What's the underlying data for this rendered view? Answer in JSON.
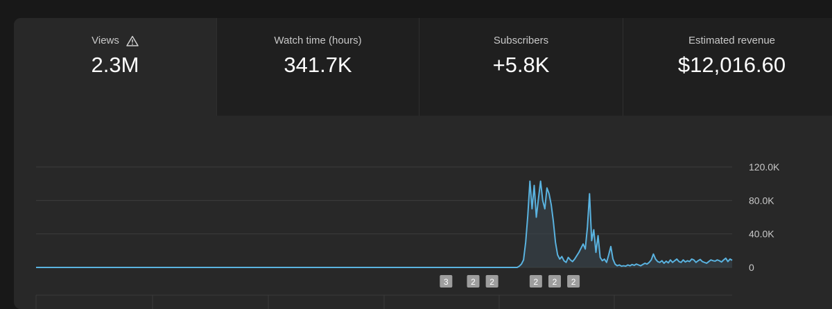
{
  "metrics": [
    {
      "label": "Views",
      "value": "2.3M",
      "selected": true,
      "warning_icon": "warning-triangle-icon"
    },
    {
      "label": "Watch time (hours)",
      "value": "341.7K",
      "selected": false
    },
    {
      "label": "Subscribers",
      "value": "+5.8K",
      "selected": false
    },
    {
      "label": "Estimated revenue",
      "value": "$12,016.60",
      "selected": false
    }
  ],
  "colors": {
    "line": "#5ab3e0",
    "background": "#282828",
    "tab_background": "#1f1f1f",
    "grid": "#3c3c3c",
    "marker": "#9e9e9e"
  },
  "chart_data": {
    "type": "area",
    "ylim": [
      0,
      120000
    ],
    "y_ticks": [
      "120.0K",
      "80.0K",
      "40.0K",
      "0"
    ],
    "y_tick_values": [
      120000,
      80000,
      40000,
      0
    ],
    "grid": true,
    "y_axis_position": "right",
    "series": [
      {
        "values": [
          0,
          0,
          0,
          0,
          0,
          0,
          0,
          0,
          0,
          0,
          0,
          0,
          0,
          0,
          0,
          0,
          0,
          0,
          0,
          0,
          0,
          0,
          0,
          0,
          0,
          0,
          0,
          0,
          0,
          0,
          0,
          0,
          0,
          0,
          0,
          0,
          0,
          0,
          0,
          0,
          0,
          0,
          0,
          0,
          0,
          0,
          0,
          0,
          0,
          0,
          0,
          0,
          0,
          0,
          0,
          0,
          0,
          0,
          0,
          0,
          0,
          0,
          0,
          0,
          0,
          0,
          0,
          0,
          0,
          0,
          0,
          0,
          0,
          0,
          0,
          0,
          0,
          0,
          0,
          0,
          0,
          0,
          0,
          0,
          0,
          0,
          0,
          0,
          0,
          0,
          0,
          0,
          0,
          0,
          0,
          0,
          0,
          0,
          0,
          0,
          0,
          0,
          0,
          0,
          0,
          0,
          0,
          0,
          0,
          0,
          0,
          0,
          0,
          0,
          0,
          0,
          0,
          0,
          0,
          0,
          0,
          0,
          0,
          0,
          0,
          0,
          0,
          0,
          0,
          0,
          0,
          0,
          0,
          0,
          0,
          0,
          0,
          0,
          0,
          0,
          0,
          0,
          0,
          0,
          0,
          0,
          0,
          0,
          0,
          0,
          0,
          0,
          0,
          0,
          0,
          0,
          0,
          0,
          0,
          0,
          0,
          0,
          0,
          0,
          0,
          0,
          0,
          0,
          0,
          0,
          0,
          0,
          0,
          0,
          0,
          0,
          0,
          0,
          0,
          0,
          0,
          0,
          0,
          0,
          0,
          0,
          0,
          0,
          0,
          0,
          0,
          0,
          0,
          0,
          0,
          0,
          0,
          0,
          0,
          0,
          0,
          0,
          0,
          0,
          0,
          0,
          0,
          0,
          0,
          0,
          0,
          0,
          0,
          0,
          0,
          0,
          0,
          0,
          0,
          0,
          0,
          0,
          0,
          0,
          0,
          0,
          0,
          1500,
          4000,
          9000,
          30000,
          62000,
          103000,
          70000,
          98000,
          60000,
          82000,
          103000,
          80000,
          70000,
          95000,
          88000,
          75000,
          55000,
          30000,
          15000,
          10000,
          13000,
          8000,
          6000,
          12000,
          9000,
          7000,
          10000,
          14000,
          18000,
          23000,
          28000,
          22000,
          48000,
          88000,
          32000,
          45000,
          18000,
          38000,
          12000,
          8000,
          10000,
          6000,
          15000,
          25000,
          10000,
          4000,
          2000,
          3000,
          1500,
          2000,
          1500,
          3000,
          2000,
          3500,
          2500,
          4000,
          3000,
          2000,
          3500,
          5000,
          4000,
          6000,
          9000,
          16000,
          10000,
          7000,
          6000,
          8000,
          5000,
          7500,
          5500,
          9000,
          6000,
          8000,
          10000,
          7000,
          6000,
          9000,
          6500,
          8000,
          7000,
          10000,
          9000,
          6000,
          8000,
          9500,
          7000,
          6000,
          5000,
          7000,
          9000,
          8000,
          7500,
          9000,
          8000,
          6500,
          9000,
          11000,
          7000,
          10000,
          8500
        ]
      }
    ],
    "annotations": [
      {
        "label": "3",
        "index_fraction": 0.589
      },
      {
        "label": "2",
        "index_fraction": 0.628
      },
      {
        "label": "2",
        "index_fraction": 0.655
      },
      {
        "label": "2",
        "index_fraction": 0.718
      },
      {
        "label": "2",
        "index_fraction": 0.745
      },
      {
        "label": "2",
        "index_fraction": 0.772
      }
    ]
  }
}
